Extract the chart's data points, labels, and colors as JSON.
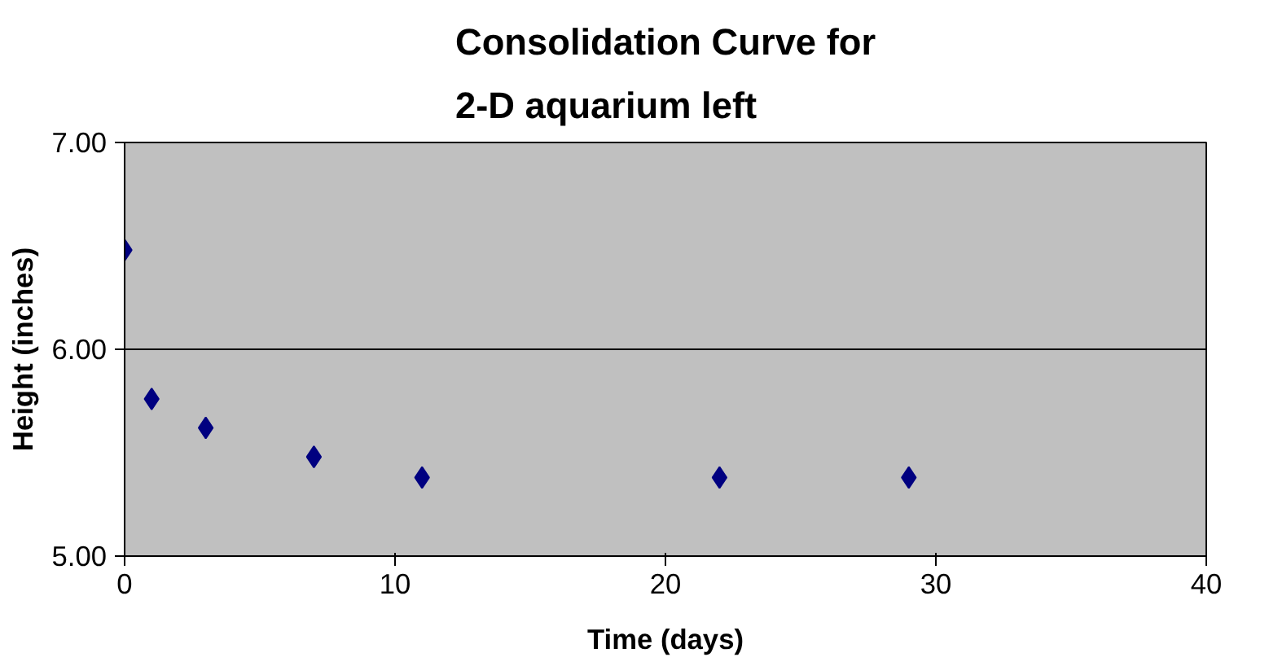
{
  "chart_data": {
    "type": "scatter",
    "title": "Consolidation Curve for\n2-D aquarium left",
    "xlabel": "Time (days)",
    "ylabel": "Height (inches)",
    "x": [
      0,
      1,
      3,
      7,
      11,
      22,
      29
    ],
    "series": [
      {
        "color": "#000080",
        "values": [
          6.48,
          5.76,
          5.62,
          5.48,
          5.38,
          5.38,
          5.38
        ]
      }
    ],
    "xlim": [
      0,
      40
    ],
    "xticks": [
      0,
      10,
      20,
      30,
      40
    ],
    "ylim": [
      5,
      7
    ],
    "yticks": [
      {
        "value": 5,
        "label": "5.00"
      },
      {
        "value": 6,
        "label": "6.00"
      },
      {
        "value": 7,
        "label": "7.00"
      }
    ],
    "grid": "y",
    "marker": "diamond"
  }
}
